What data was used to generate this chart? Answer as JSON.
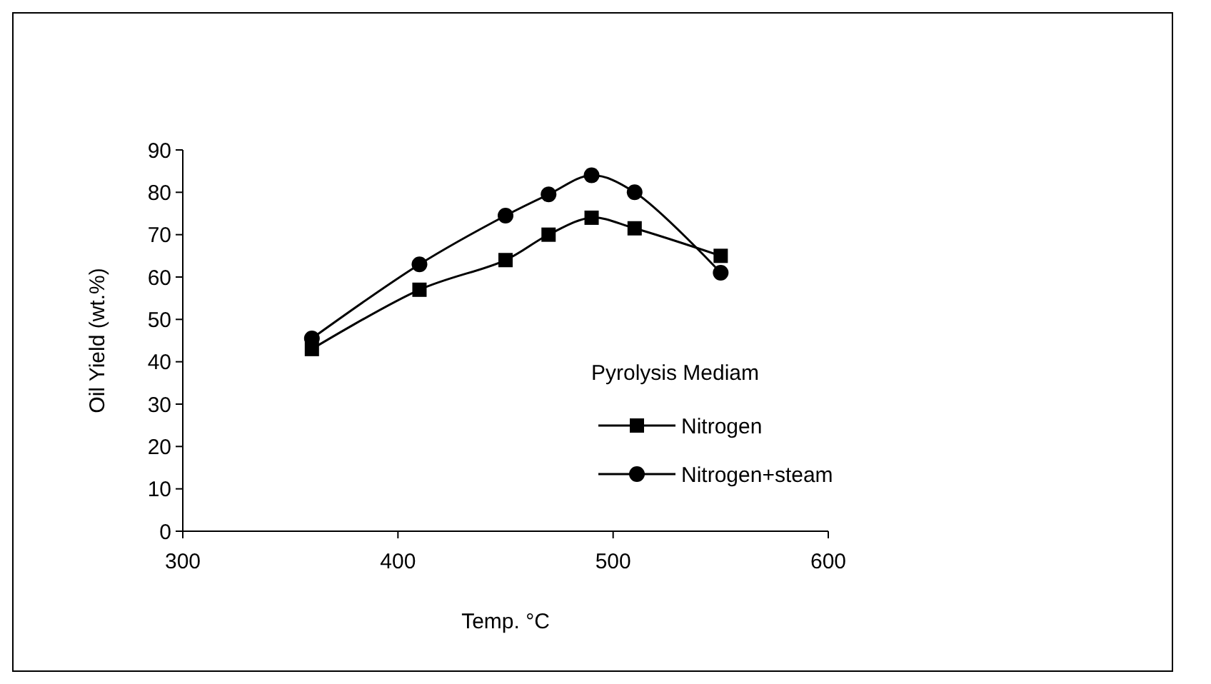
{
  "chart_data": {
    "type": "line",
    "xlabel": "Temp. °C",
    "ylabel": "Oil Yield (wt.%)",
    "legend_title": "Pyrolysis Mediam",
    "legend": "bottom right",
    "grid": false,
    "xlim": [
      300,
      600
    ],
    "xticks": [
      300,
      400,
      500,
      600
    ],
    "ylim": [
      0,
      90
    ],
    "yticks": [
      0,
      10,
      20,
      30,
      40,
      50,
      60,
      70,
      80,
      90
    ],
    "x": [
      360,
      410,
      450,
      470,
      490,
      510,
      550
    ],
    "series": [
      {
        "name": "Nitrogen",
        "color": "#000000",
        "marker": "square",
        "values": [
          43,
          57,
          64,
          70,
          74,
          71.5,
          65
        ]
      },
      {
        "name": "Nitrogen+steam",
        "color": "#000000",
        "marker": "circle",
        "values": [
          45.5,
          63,
          74.5,
          79.5,
          84,
          80,
          61
        ]
      }
    ]
  }
}
